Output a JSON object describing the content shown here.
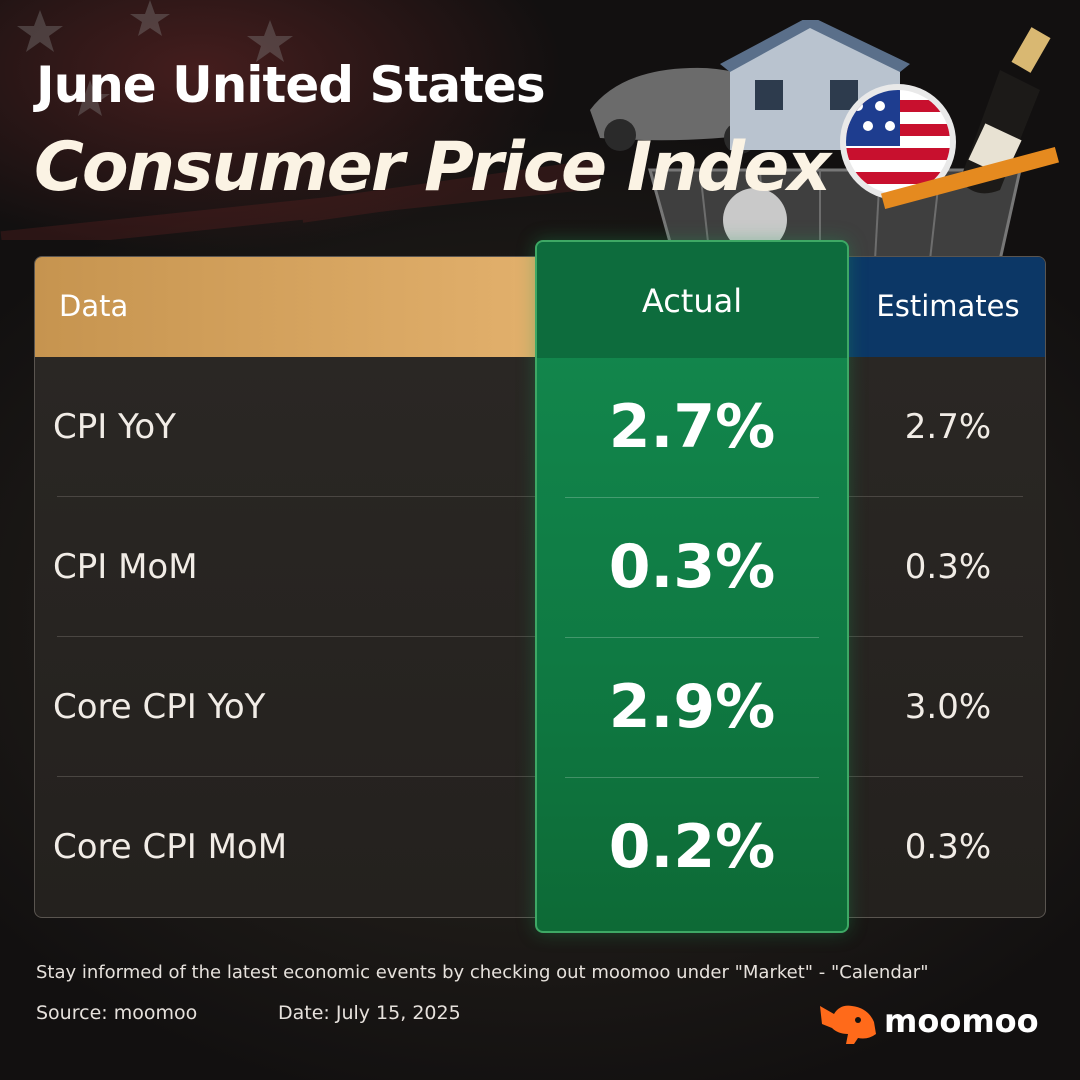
{
  "header": {
    "title_line1": "June United States",
    "title_line2": "Consumer Price Index"
  },
  "table": {
    "columns": {
      "data": "Data",
      "actual": "Actual",
      "estimates": "Estimates"
    },
    "rows": [
      {
        "label": "CPI YoY",
        "actual": "2.7%",
        "estimate": "2.7%"
      },
      {
        "label": "CPI MoM",
        "actual": "0.3%",
        "estimate": "0.3%"
      },
      {
        "label": "Core CPI YoY",
        "actual": "2.9%",
        "estimate": "3.0%"
      },
      {
        "label": "Core CPI MoM",
        "actual": "0.2%",
        "estimate": "0.3%"
      }
    ]
  },
  "footer": {
    "note": "Stay informed of the latest economic events by checking out moomoo under \"Market\" - \"Calendar\"",
    "source": "Source: moomoo",
    "date": "Date: July 15, 2025"
  },
  "brand": {
    "name": "moomoo",
    "accent": "#ff6a1a"
  },
  "colors": {
    "data_header": "#d9a45f",
    "actual_column": "#138a4f",
    "estimates_header": "#0c3766"
  }
}
